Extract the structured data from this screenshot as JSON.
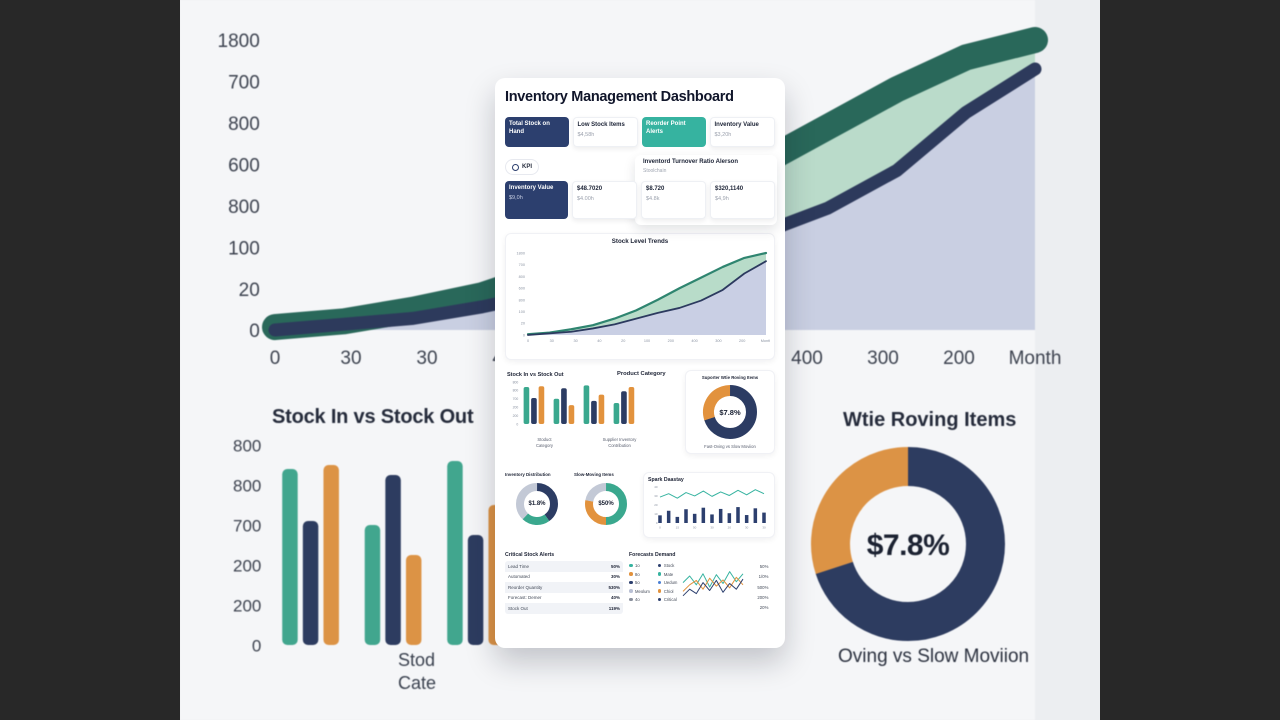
{
  "frame": {
    "letterbox_color": "#282828",
    "stage_bg": "#eceef1",
    "bg_card_bg": "#f5f6f8"
  },
  "colors": {
    "navy": "#2c3f6e",
    "teal": "#36b3a0",
    "orange": "#e2923d",
    "green_line": "#2f8570",
    "green_fill": "#b8dcc9",
    "lavender_fill": "#c9cfe4",
    "card_bg": "#ffffff"
  },
  "card": {
    "title": "Inventory Management Dashboard",
    "kpis_row1": [
      {
        "label": "Total Stock on Hand",
        "value": ""
      },
      {
        "label": "Low Stock Items",
        "value": "$4,58h"
      },
      {
        "label": "Reorder Point Alerts",
        "value": ""
      },
      {
        "label": "Inventory Value",
        "value": "$3,20h"
      }
    ],
    "kpi_pill": "KPI",
    "turnover_title": "Inventord Turnover Ratio Alerson",
    "turnover_subtitle": "Stoolchain",
    "kpis_row2": [
      {
        "label": "Inventory Value",
        "value": "$9,0h"
      },
      {
        "label": "$48.7020",
        "value": "$4.00h"
      },
      {
        "label": "$8.720",
        "value": "$4.8k"
      },
      {
        "label": "$320,1140",
        "value": "$4,9h"
      }
    ],
    "product_category_label": "Product Category",
    "mid_captions": {
      "c1a": "Stoduct",
      "c1b": "Category",
      "c2a": "Supplier Inventory",
      "c2b": "Contribution"
    },
    "critical": {
      "title": "Critical Stock Alerts",
      "rows": [
        {
          "label": "Lead Time",
          "value": "50%"
        },
        {
          "label": "Automated",
          "value": "30%"
        },
        {
          "label": "Reorder Quantity",
          "value": "530%"
        },
        {
          "label": "Forecast: Demer",
          "value": "40%"
        },
        {
          "label": "Stock Out",
          "value": "119%"
        }
      ]
    },
    "forecast_panel": {
      "title": "Forecasts Demand",
      "legend": [
        {
          "dot": "background:#36b3a0",
          "label": "1o"
        },
        {
          "dot": "background:#2c3f6e",
          "label": "Stock"
        },
        {
          "dot": "background:#e2923d",
          "label": "8o"
        },
        {
          "dot": "background:#36b3a0",
          "label": "Mate"
        },
        {
          "dot": "background:#2c3f6e",
          "label": "5o"
        },
        {
          "dot": "background:#4a7fd4",
          "label": "Uedum"
        },
        {
          "dot": "background:#b9c0d4",
          "label": "Meolum"
        },
        {
          "dot": "background:#e2923d",
          "label": "Chiol"
        },
        {
          "dot": "background:#8a8f9c",
          "label": "4o"
        },
        {
          "dot": "background:#2c3f6e",
          "label": "Critical"
        }
      ]
    }
  },
  "background": {
    "bar_caption_line1": "Stod",
    "bar_caption_line2": "Cate",
    "donut_title": "Wtie Roving Items",
    "donut_caption": "Oving vs Slow Moviion"
  },
  "chart_data": [
    {
      "id": "stock_level_trends",
      "type": "area",
      "title": "Stock Level Trends",
      "y_ticks": [
        "1800",
        "700",
        "800",
        "600",
        "800",
        "100",
        "20",
        "0"
      ],
      "x_ticks": [
        "0",
        "30",
        "30",
        "40",
        "20",
        "100",
        "200",
        "400",
        "300",
        "200",
        "Month"
      ],
      "ylim": [
        0,
        1800
      ],
      "series": [
        {
          "name": "stock-upper",
          "line": "#2f8570",
          "fill": "#b8dcc9",
          "values": [
            1,
            3,
            7,
            12,
            20,
            30,
            43,
            57,
            70,
            83,
            94,
            100
          ]
        },
        {
          "name": "stock-lower",
          "line": "#2c3a5f",
          "fill": "#c9cfe4",
          "values": [
            0,
            2,
            4,
            8,
            13,
            20,
            27,
            33,
            42,
            55,
            75,
            90
          ]
        }
      ]
    },
    {
      "id": "stock_in_out",
      "type": "grouped_bar",
      "title": "Stock In vs Stock Out",
      "y_ticks": [
        "800",
        "800",
        "700",
        "200",
        "200",
        "0"
      ],
      "series_colors": [
        "#3aa88e",
        "#2c3c63",
        "#e2923d"
      ],
      "groups": [
        [
          88,
          62,
          90
        ],
        [
          60,
          85,
          45
        ],
        [
          92,
          55,
          70
        ],
        [
          50,
          78,
          88
        ]
      ]
    },
    {
      "id": "supplier_donut",
      "type": "donut",
      "title": "Suporter Wtie Roving Items",
      "center": "$7.8%",
      "caption": "Fast-Oving vs Slow Moviion",
      "segments": [
        {
          "color": "#2c3c63",
          "value": 70
        },
        {
          "color": "#e2923d",
          "value": 30
        }
      ]
    },
    {
      "id": "inventory_distribution",
      "type": "donut",
      "title": "Inventory Distribution",
      "center": "$1.8%",
      "segments": [
        {
          "color": "#2c3c63",
          "value": 40
        },
        {
          "color": "#3aa88e",
          "value": 22
        },
        {
          "color": "#c3c9d6",
          "value": 38
        }
      ]
    },
    {
      "id": "slow_moving",
      "type": "donut",
      "title": "Slow-Moving Items",
      "center": "$50%",
      "segments": [
        {
          "color": "#3aa88e",
          "value": 50
        },
        {
          "color": "#e2923d",
          "value": 28
        },
        {
          "color": "#c3c9d6",
          "value": 22
        }
      ]
    },
    {
      "id": "spark",
      "type": "spark",
      "title": "Spark Daastay",
      "y_ticks": [
        "40",
        "30",
        "20",
        "10",
        "0"
      ],
      "x_ticks": [
        "0",
        "15",
        "50",
        "30",
        "20",
        "30",
        "30"
      ],
      "line_color": "#36b3a0",
      "bar_color": "#2c3f6e",
      "line": [
        55,
        70,
        50,
        75,
        60,
        82,
        58,
        78,
        62,
        85,
        65,
        88,
        70
      ],
      "bars": [
        25,
        40,
        20,
        45,
        30,
        50,
        28,
        46,
        32,
        52,
        26,
        48,
        34
      ]
    },
    {
      "id": "forecast",
      "type": "multi_line",
      "right_labels": [
        "50%",
        "1/0%",
        "500%",
        "200%",
        "20%"
      ],
      "series": [
        {
          "color": "#36b3a0",
          "values": [
            60,
            75,
            55,
            80,
            50,
            78,
            58,
            85,
            62,
            80
          ]
        },
        {
          "color": "#e2923d",
          "values": [
            40,
            55,
            65,
            45,
            70,
            52,
            66,
            48,
            72,
            55
          ]
        },
        {
          "color": "#2c3f6e",
          "values": [
            30,
            45,
            35,
            60,
            42,
            65,
            38,
            58,
            45,
            68
          ]
        }
      ]
    }
  ]
}
